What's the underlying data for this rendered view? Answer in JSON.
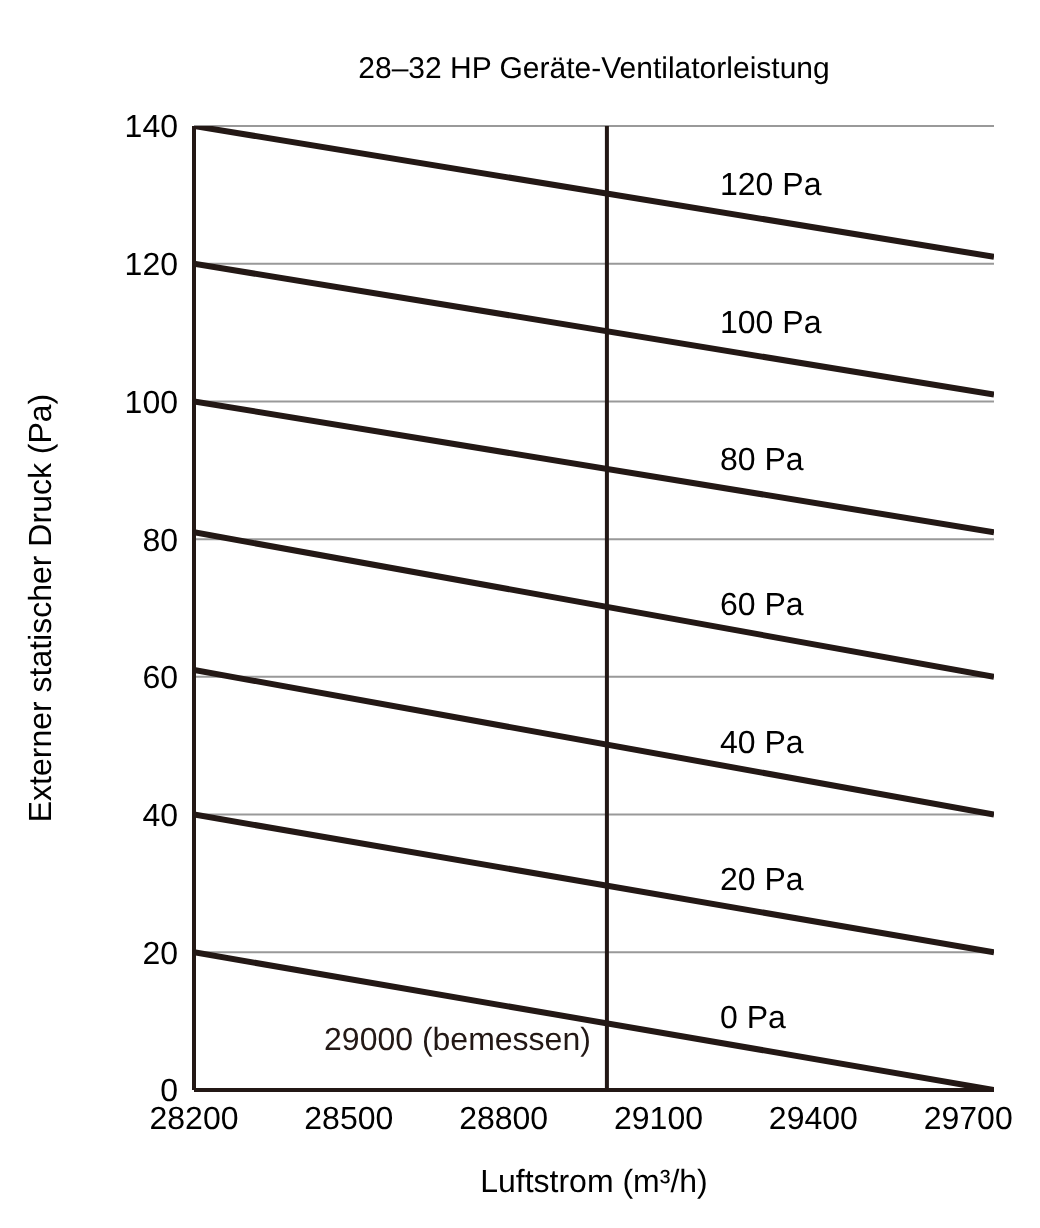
{
  "chart_data": {
    "type": "line",
    "title": "28–32 HP Geräte-Ventilatorleistung",
    "xlabel": "Luftstrom (m³/h)",
    "ylabel": "Externer statischer Druck (Pa)",
    "x": [
      28200,
      29750
    ],
    "series": [
      {
        "name": "0 Pa",
        "color": "#231815",
        "values": [
          20,
          0
        ]
      },
      {
        "name": "20 Pa",
        "color": "#231815",
        "values": [
          40,
          20
        ]
      },
      {
        "name": "40 Pa",
        "color": "#231815",
        "values": [
          61,
          40
        ]
      },
      {
        "name": "60 Pa",
        "color": "#231815",
        "values": [
          81,
          60
        ]
      },
      {
        "name": "80 Pa",
        "color": "#231815",
        "values": [
          100,
          81
        ]
      },
      {
        "name": "100 Pa",
        "color": "#231815",
        "values": [
          120,
          101
        ]
      },
      {
        "name": "120 Pa",
        "color": "#231815",
        "values": [
          140,
          121
        ]
      }
    ],
    "xlim": [
      28200,
      29750
    ],
    "xticks": [
      28200,
      28500,
      28800,
      29100,
      29400,
      29700
    ],
    "ylim": [
      0,
      140
    ],
    "yticks": [
      0,
      20,
      40,
      60,
      80,
      100,
      120,
      140
    ],
    "ref_lines": [
      {
        "axis": "x",
        "value": 29000,
        "label": "29000 (bemessen)",
        "color": "#231815"
      }
    ],
    "grid": "y",
    "legend": false,
    "marker": "none",
    "line_style": "solid"
  }
}
